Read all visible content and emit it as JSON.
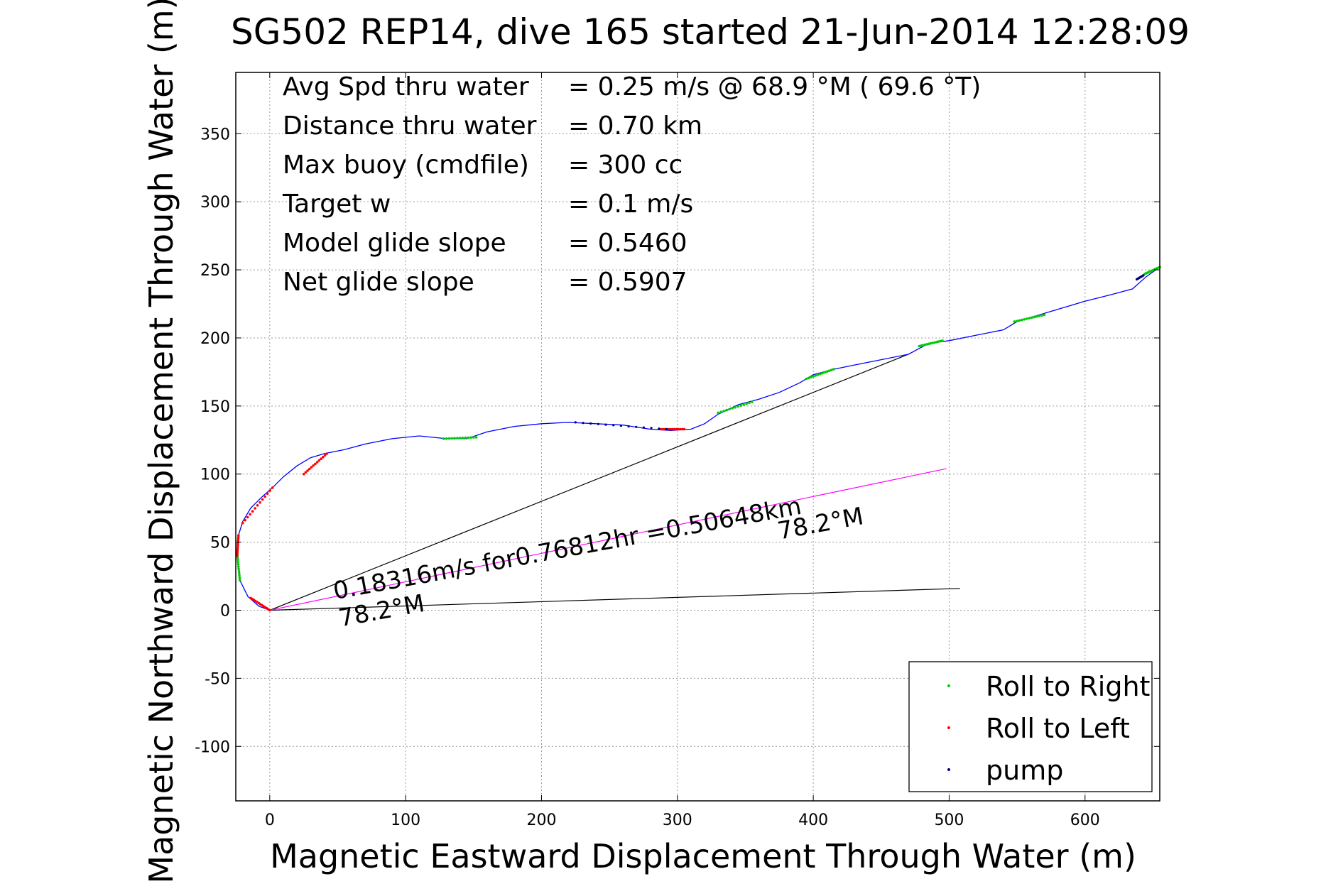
{
  "chart_data": {
    "type": "line",
    "title": "SG502 REP14, dive 165 started 21-Jun-2014 12:28:09",
    "xlabel": "Magnetic Eastward Displacement Through Water (m)",
    "ylabel": "Magnetic Northward Displacement Through Water (m)",
    "xlim": [
      -25,
      655
    ],
    "ylim": [
      -140,
      395
    ],
    "xticks": [
      0,
      100,
      200,
      300,
      400,
      500,
      600
    ],
    "yticks": [
      -100,
      -50,
      0,
      50,
      100,
      150,
      200,
      250,
      300,
      350
    ],
    "grid": true,
    "stats": [
      {
        "label": "Avg Spd thru water",
        "value": "=  0.25 m/s @  68.9 °M ( 69.6 °T)"
      },
      {
        "label": "Distance thru water",
        "value": "=  0.70 km"
      },
      {
        "label": "Max buoy (cmdfile)",
        "value": "= 300 cc"
      },
      {
        "label": "Target w",
        "value": "= 0.1 m/s"
      },
      {
        "label": "Model glide slope",
        "value": "= 0.5460"
      },
      {
        "label": "Net glide slope",
        "value": "= 0.5907"
      }
    ],
    "track": {
      "color": "#0000ff",
      "x": [
        0,
        -8,
        -16,
        -22,
        -24,
        -23,
        -20,
        -14,
        -6,
        2,
        10,
        20,
        30,
        40,
        55,
        70,
        90,
        110,
        130,
        145,
        160,
        180,
        200,
        220,
        240,
        260,
        280,
        295,
        310,
        320,
        330,
        345,
        360,
        375,
        390,
        400,
        415,
        430,
        450,
        470,
        485,
        500,
        520,
        540,
        550,
        570,
        600,
        620,
        635,
        645,
        655
      ],
      "y": [
        0,
        3,
        10,
        22,
        40,
        55,
        65,
        75,
        83,
        90,
        98,
        106,
        112,
        115,
        118,
        122,
        126,
        128,
        126,
        126,
        131,
        135,
        137,
        138,
        137,
        136,
        133,
        132,
        133,
        137,
        144,
        151,
        155,
        160,
        167,
        173,
        177,
        180,
        184,
        188,
        196,
        198,
        202,
        206,
        212,
        218,
        227,
        232,
        236,
        245,
        252
      ]
    },
    "roll_right_segments": [
      [
        [
          -22,
          22
        ],
        [
          -24,
          42
        ]
      ],
      [
        [
          128,
          126
        ],
        [
          152,
          127
        ]
      ],
      [
        [
          330,
          145
        ],
        [
          355,
          153
        ]
      ],
      [
        [
          395,
          170
        ],
        [
          415,
          177
        ]
      ],
      [
        [
          478,
          194
        ],
        [
          495,
          198
        ]
      ],
      [
        [
          548,
          212
        ],
        [
          570,
          217
        ]
      ],
      [
        [
          644,
          247
        ],
        [
          655,
          252
        ]
      ]
    ],
    "roll_left_segments": [
      [
        [
          0,
          0
        ],
        [
          -14,
          9
        ]
      ],
      [
        [
          -24,
          40
        ],
        [
          -23,
          55
        ]
      ],
      [
        [
          -20,
          64
        ],
        [
          2,
          90
        ]
      ],
      [
        [
          25,
          100
        ],
        [
          42,
          115
        ]
      ],
      [
        [
          288,
          133
        ],
        [
          305,
          133
        ]
      ]
    ],
    "pump_segments": [
      [
        [
          225,
          138
        ],
        [
          292,
          133
        ]
      ],
      [
        [
          638,
          243
        ],
        [
          643,
          246
        ]
      ]
    ],
    "reference_lines": [
      {
        "color": "#000000",
        "x": [
          0,
          470
        ],
        "y": [
          0,
          188
        ]
      },
      {
        "color": "#000000",
        "x": [
          0,
          508
        ],
        "y": [
          0,
          16
        ]
      },
      {
        "color": "#ff00ff",
        "x": [
          0,
          498
        ],
        "y": [
          0,
          104
        ]
      }
    ],
    "annotations": [
      {
        "text": "0.18316m/s for0.76812hr =0.50648km",
        "x": 48,
        "y": 8,
        "angle": 10.4
      },
      {
        "text": "78.2°M",
        "x": 52,
        "y": -12,
        "angle": 10.4
      },
      {
        "text": "78.2°M",
        "x": 375,
        "y": 52,
        "angle": 10.4
      }
    ],
    "legend": {
      "position": "bottom-right",
      "entries": [
        {
          "name": "Roll to Right",
          "color": "#00cc00"
        },
        {
          "name": "Roll to Left",
          "color": "#ff0000"
        },
        {
          "name": "pump",
          "color": "#000080"
        }
      ]
    }
  }
}
